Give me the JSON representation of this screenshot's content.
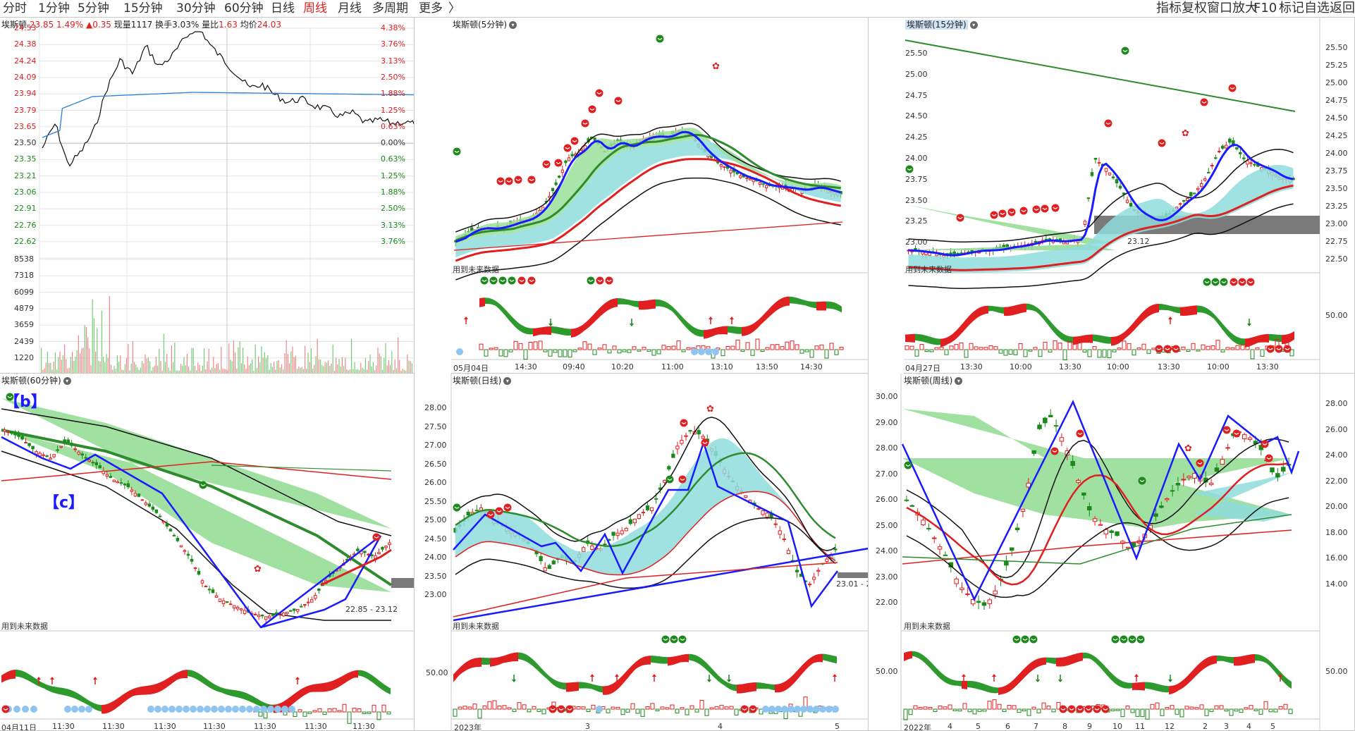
{
  "toolbar": {
    "periods": [
      "分时",
      "1分钟",
      "5分钟",
      "15分钟",
      "30分钟",
      "60分钟",
      "日线",
      "周线",
      "月线",
      "多周期",
      "更多"
    ],
    "active_period": "周线",
    "chevron": "〉",
    "right_items": [
      "指标",
      "复权",
      "窗口放大",
      "F10",
      "标记",
      "自选",
      "返回"
    ]
  },
  "panels": {
    "intraday": {
      "name": "埃斯顿",
      "price": "23.85",
      "change_pct": "1.49%",
      "change": "▲0.35",
      "volume_label": "现量",
      "volume": "1117",
      "turnover_label": "换手",
      "turnover": "3.03%",
      "ratio_label": "量比",
      "ratio": "1.63",
      "avg_label": "均价",
      "avg": "24.03",
      "left_price_labels": [
        "24.53",
        "24.38",
        "24.24",
        "24.09",
        "23.94",
        "23.79",
        "23.65",
        "23.50",
        "23.35",
        "23.21",
        "23.06",
        "22.91",
        "22.76",
        "22.62"
      ],
      "right_pct_labels": [
        "4.38%",
        "3.76%",
        "3.13%",
        "2.50%",
        "1.88%",
        "1.25%",
        "0.63%",
        "0.00%",
        "0.63%",
        "1.25%",
        "1.88%",
        "2.50%",
        "3.13%",
        "3.76%"
      ],
      "volume_labels": [
        "8538",
        "7318",
        "6099",
        "4879",
        "3659",
        "2439",
        "1220"
      ]
    },
    "m5": {
      "name": "埃斯顿(5分钟)",
      "future_text": "用到未来数据",
      "x_labels": [
        "05月04日",
        "14:30",
        "09:40",
        "10:20",
        "11:00",
        "13:10",
        "13:50",
        "14:30"
      ]
    },
    "m15": {
      "name": "埃斯顿(15分钟)",
      "future_text": "用到未来数据",
      "price_labels": [
        "25.50",
        "25.25",
        "25.00",
        "24.75",
        "24.50",
        "24.25",
        "24.00",
        "23.75",
        "23.50",
        "23.25",
        "23.00",
        "22.75",
        "22.50"
      ],
      "left_price_labels": [
        "25.50",
        "25.00",
        "24.75",
        "24.50",
        "24.25",
        "24.00",
        "23.75",
        "23.50",
        "23.25",
        "23.00"
      ],
      "indicator_label": "50.00",
      "price_tag": "23.12",
      "x_labels": [
        "04月27日",
        "13:30",
        "10:00",
        "13:30",
        "10:00",
        "13:30",
        "10:00",
        "13:30"
      ]
    },
    "m60": {
      "name": "埃斯顿(60分钟)",
      "future_text": "用到未来数据",
      "bracket_b": "【b】",
      "bracket_c": "【c】",
      "range_tag": "22.85 - 23.12",
      "x_labels": [
        "04月11日",
        "11:30",
        "11:30",
        "11:30",
        "11:30",
        "11:30",
        "11:30",
        "11:30"
      ]
    },
    "daily": {
      "name": "埃斯顿(日线)",
      "future_text": "用到未来数据",
      "price_labels": [
        "28.00",
        "27.50",
        "27.00",
        "26.50",
        "26.00",
        "25.50",
        "25.00",
        "24.50",
        "24.00",
        "23.50",
        "23.00"
      ],
      "indicator_label": "50.00",
      "range_tag": "23.01 - 2",
      "x_labels": [
        "2023年",
        "3",
        "4",
        "5"
      ]
    },
    "weekly": {
      "name": "埃斯顿(周线)",
      "future_text": "用到未来数据",
      "price_labels": [
        "30.00",
        "29.00",
        "28.00",
        "27.00",
        "26.00",
        "25.00",
        "24.00",
        "23.00",
        "22.00"
      ],
      "right_labels": [
        "28.00",
        "26.00",
        "24.00",
        "22.00",
        "20.00",
        "18.00",
        "16.00",
        "14.00"
      ],
      "indicator_label": "50.00",
      "x_labels": [
        "2022年",
        "4",
        "5",
        "6",
        "7",
        "8",
        "9",
        "10",
        "11",
        "12",
        "2",
        "3",
        "4",
        "5"
      ]
    }
  },
  "colors": {
    "up": "#e02020",
    "down": "#1b8a1b",
    "trend_line": "#1a1aff",
    "band_green": "#3cb43c",
    "band_cyan": "#8fdcdc",
    "grid": "#d8d8d8",
    "avg_line": "#2a7fd4"
  }
}
